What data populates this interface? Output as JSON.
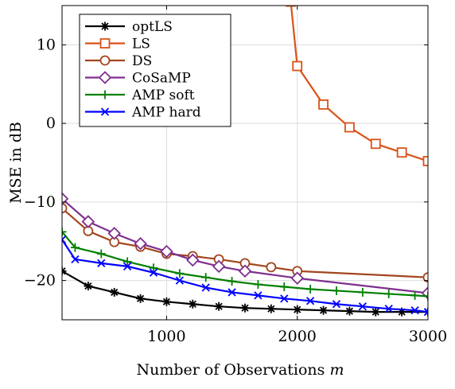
{
  "chart_data": {
    "type": "line",
    "xlabel": "Number of Observations",
    "xlabel_var": "m",
    "ylabel": "MSE in dB",
    "xlim": [
      200,
      3000
    ],
    "ylim": [
      -25,
      15
    ],
    "xticks": [
      1000,
      2000,
      3000
    ],
    "yticks": [
      10,
      0,
      -10,
      -20
    ],
    "ytick_labels": [
      "10",
      "0",
      "−10",
      "−20"
    ],
    "grid": true,
    "legend_position": "top-left",
    "series": [
      {
        "name": "optLS",
        "color": "#000000",
        "marker": "asterisk",
        "x": [
          200,
          400,
          600,
          800,
          1000,
          1200,
          1400,
          1600,
          1800,
          2000,
          2200,
          2400,
          2600,
          2800,
          3000
        ],
        "y": [
          -18.8,
          -20.7,
          -21.5,
          -22.3,
          -22.7,
          -23.0,
          -23.3,
          -23.5,
          -23.6,
          -23.7,
          -23.8,
          -23.9,
          -24.0,
          -24.0,
          -24.0
        ]
      },
      {
        "name": "LS",
        "color": "#d95319",
        "marker": "square",
        "x": [
          1950,
          2000,
          2200,
          2400,
          2600,
          2800,
          3000
        ],
        "y": [
          15.5,
          7.3,
          2.4,
          -0.5,
          -2.6,
          -3.7,
          -4.8
        ]
      },
      {
        "name": "DS",
        "color": "#a2461e",
        "marker": "circle",
        "x": [
          200,
          400,
          600,
          800,
          1000,
          1200,
          1400,
          1600,
          1800,
          2000,
          3000
        ],
        "y": [
          -10.8,
          -13.7,
          -15.1,
          -15.7,
          -16.6,
          -16.9,
          -17.3,
          -17.8,
          -18.3,
          -18.8,
          -19.6
        ]
      },
      {
        "name": "CoSaMP",
        "color": "#7e2f8e",
        "marker": "diamond",
        "x": [
          200,
          400,
          600,
          800,
          1000,
          1200,
          1400,
          1600,
          2000,
          3000
        ],
        "y": [
          -9.6,
          -12.5,
          -14.0,
          -15.3,
          -16.3,
          -17.4,
          -18.2,
          -18.8,
          -19.7,
          -21.6
        ]
      },
      {
        "name": "AMP soft",
        "color": "#008000",
        "marker": "plus",
        "x": [
          200,
          300,
          500,
          700,
          900,
          1100,
          1300,
          1500,
          1700,
          1900,
          2100,
          2300,
          2500,
          2700,
          2900,
          3000
        ],
        "y": [
          -13.8,
          -15.8,
          -16.6,
          -17.6,
          -18.4,
          -19.1,
          -19.6,
          -20.1,
          -20.5,
          -20.8,
          -21.1,
          -21.3,
          -21.5,
          -21.7,
          -21.9,
          -22.0
        ]
      },
      {
        "name": "AMP hard",
        "color": "#0000ff",
        "marker": "x",
        "x": [
          200,
          300,
          500,
          700,
          900,
          1100,
          1300,
          1500,
          1700,
          1900,
          2100,
          2300,
          2500,
          2700,
          2900,
          3000
        ],
        "y": [
          -14.8,
          -17.3,
          -17.8,
          -18.2,
          -19.0,
          -20.0,
          -20.9,
          -21.5,
          -21.9,
          -22.3,
          -22.6,
          -23.0,
          -23.3,
          -23.6,
          -23.8,
          -24.0
        ]
      }
    ]
  }
}
